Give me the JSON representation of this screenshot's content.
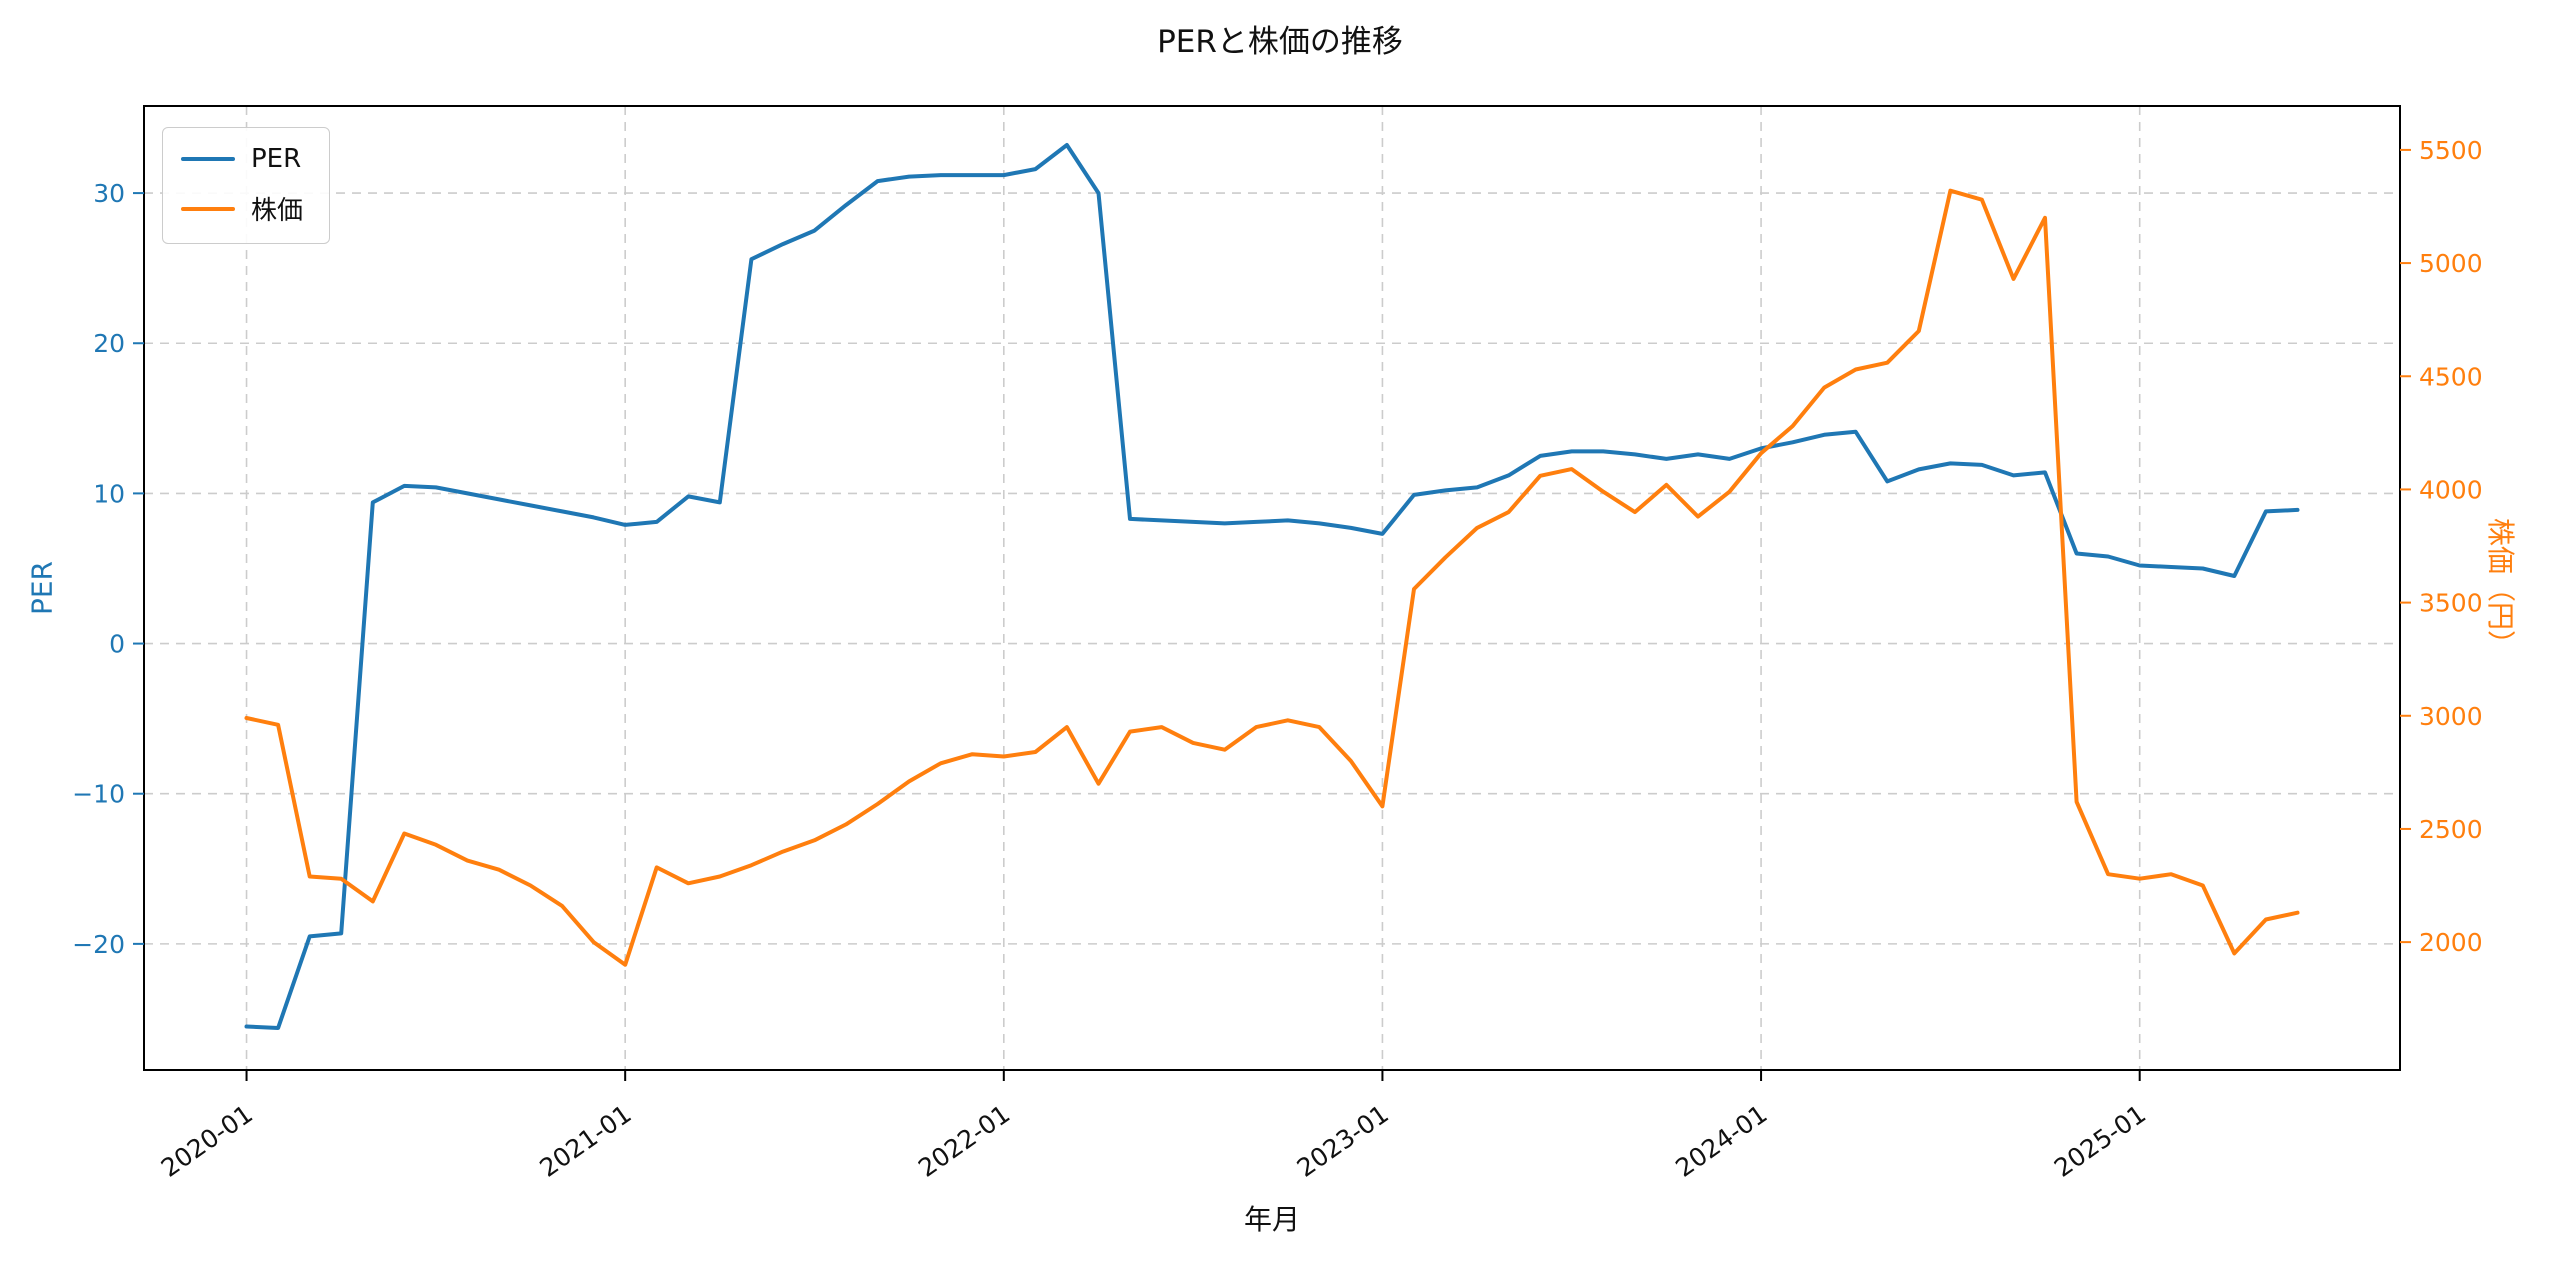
{
  "title": "PERと株価の推移",
  "chart_data": {
    "type": "line",
    "title": "PERと株価の推移",
    "xlabel": "年月",
    "ylabel_left": "PER",
    "ylabel_right": "株価（円）",
    "grid": true,
    "legend_position": "upper-left",
    "legend_labels": [
      "PER",
      "株価"
    ],
    "x_tick_labels": [
      "2020-01",
      "2021-01",
      "2022-01",
      "2023-01",
      "2024-01",
      "2025-01"
    ],
    "x_tick_indices": [
      0,
      12,
      24,
      36,
      48,
      60
    ],
    "left_ticks": [
      -20,
      -10,
      0,
      10,
      20,
      30
    ],
    "right_ticks": [
      2000,
      2500,
      3000,
      3500,
      4000,
      4500,
      5000,
      5500
    ],
    "left_ylim": [
      -28.4,
      35.8
    ],
    "right_ylim": [
      1435,
      5694
    ],
    "x_index_lim": [
      -3.25,
      68.25
    ],
    "x": [
      "2020-01",
      "2020-02",
      "2020-03",
      "2020-04",
      "2020-05",
      "2020-06",
      "2020-07",
      "2020-08",
      "2020-09",
      "2020-10",
      "2020-11",
      "2020-12",
      "2021-01",
      "2021-02",
      "2021-03",
      "2021-04",
      "2021-05",
      "2021-06",
      "2021-07",
      "2021-08",
      "2021-09",
      "2021-10",
      "2021-11",
      "2021-12",
      "2022-01",
      "2022-02",
      "2022-03",
      "2022-04",
      "2022-05",
      "2022-06",
      "2022-07",
      "2022-08",
      "2022-09",
      "2022-10",
      "2022-11",
      "2022-12",
      "2023-01",
      "2023-02",
      "2023-03",
      "2023-04",
      "2023-05",
      "2023-06",
      "2023-07",
      "2023-08",
      "2023-09",
      "2023-10",
      "2023-11",
      "2023-12",
      "2024-01",
      "2024-02",
      "2024-03",
      "2024-04",
      "2024-05",
      "2024-06",
      "2024-07",
      "2024-08",
      "2024-09",
      "2024-10",
      "2024-11",
      "2024-12",
      "2025-01",
      "2025-02",
      "2025-03",
      "2025-04",
      "2025-05",
      "2025-06"
    ],
    "series": [
      {
        "name": "PER",
        "axis": "left",
        "color": "#1f77b4",
        "values": [
          -25.5,
          -25.6,
          -19.5,
          -19.3,
          9.4,
          10.5,
          10.4,
          10.0,
          9.6,
          9.2,
          8.8,
          8.4,
          7.9,
          8.1,
          9.8,
          9.4,
          25.6,
          26.6,
          27.5,
          29.2,
          30.8,
          31.1,
          31.2,
          31.2,
          31.2,
          31.6,
          33.2,
          30.0,
          8.3,
          8.2,
          8.1,
          8.0,
          8.1,
          8.2,
          8.0,
          7.7,
          7.3,
          9.9,
          10.2,
          10.4,
          11.2,
          12.5,
          12.8,
          12.8,
          12.6,
          12.3,
          12.6,
          12.3,
          13.0,
          13.4,
          13.9,
          14.1,
          10.8,
          11.6,
          12.0,
          11.9,
          11.2,
          11.4,
          6.0,
          5.8,
          5.2,
          5.1,
          5.0,
          4.5,
          8.8,
          8.9
        ]
      },
      {
        "name": "株価",
        "axis": "right",
        "color": "#ff7f0e",
        "values": [
          2990,
          2960,
          2290,
          2280,
          2180,
          2480,
          2430,
          2360,
          2320,
          2250,
          2160,
          2000,
          1900,
          2330,
          2260,
          2290,
          2340,
          2400,
          2450,
          2520,
          2610,
          2710,
          2790,
          2830,
          2820,
          2840,
          2950,
          2700,
          2930,
          2950,
          2880,
          2850,
          2950,
          2980,
          2950,
          2800,
          2600,
          3560,
          3700,
          3830,
          3900,
          4060,
          4090,
          3990,
          3900,
          4020,
          3880,
          3990,
          4160,
          4280,
          4450,
          4530,
          4560,
          4700,
          5320,
          5280,
          4930,
          5200,
          2620,
          2300,
          2280,
          2300,
          2250,
          1950,
          2100,
          2130
        ]
      }
    ]
  }
}
